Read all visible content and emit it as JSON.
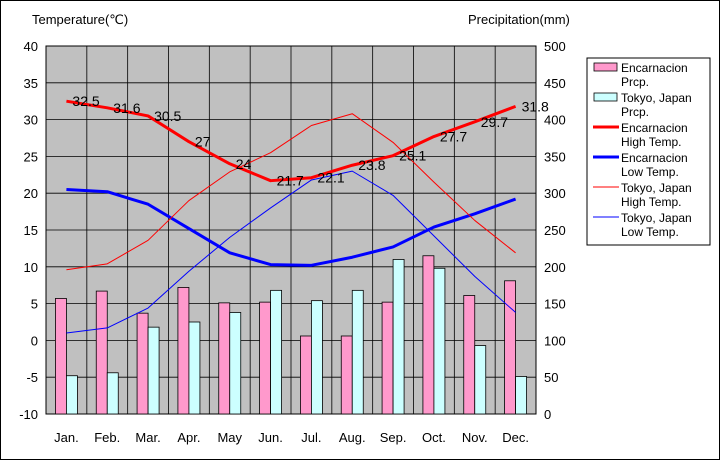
{
  "chart_data": {
    "type": "bar",
    "categories": [
      "Jan.",
      "Feb.",
      "Mar.",
      "Apr.",
      "May",
      "Jun.",
      "Jul.",
      "Aug.",
      "Sep.",
      "Oct.",
      "Nov.",
      "Dec."
    ],
    "left_axis": {
      "title": "Temperature(℃)",
      "ylim": [
        -10,
        40
      ],
      "ticks": [
        -10,
        -5,
        0,
        5,
        10,
        15,
        20,
        25,
        30,
        35,
        40
      ]
    },
    "right_axis": {
      "title": "Precipitation(mm)",
      "ylim": [
        0,
        500
      ],
      "ticks": [
        0,
        50,
        100,
        150,
        200,
        250,
        300,
        350,
        400,
        450,
        500
      ]
    },
    "grid": true,
    "legend": "right",
    "series": [
      {
        "name": "Encarnacion Prcp.",
        "kind": "bar",
        "axis": "right",
        "color": "#ff99cc",
        "values": [
          157,
          167,
          137,
          172,
          151,
          152,
          106,
          106,
          152,
          215,
          161,
          181
        ]
      },
      {
        "name": "Tokyo, Japan Prcp.",
        "kind": "bar",
        "axis": "right",
        "color": "#ccffff",
        "values": [
          52,
          56,
          118,
          125,
          138,
          168,
          154,
          168,
          210,
          198,
          93,
          51
        ]
      },
      {
        "name": "Encarnacion High Temp.",
        "kind": "line",
        "axis": "left",
        "color": "#ff0000",
        "width": "thick",
        "values": [
          32.5,
          31.6,
          30.5,
          27,
          24,
          21.7,
          22.1,
          23.8,
          25.1,
          27.7,
          29.7,
          31.8
        ]
      },
      {
        "name": "Encarnacion Low Temp.",
        "kind": "line",
        "axis": "left",
        "color": "#0000ff",
        "width": "thick",
        "values": [
          20.5,
          20.2,
          18.5,
          15.2,
          11.9,
          10.3,
          10.2,
          11.3,
          12.7,
          15.4,
          17.2,
          19.2
        ]
      },
      {
        "name": "Tokyo, Japan High Temp.",
        "kind": "line",
        "axis": "left",
        "color": "#ff0000",
        "width": "thin",
        "values": [
          9.6,
          10.4,
          13.6,
          19.0,
          22.9,
          25.5,
          29.2,
          30.8,
          26.9,
          21.5,
          16.3,
          11.9
        ]
      },
      {
        "name": "Tokyo, Japan Low Temp.",
        "kind": "line",
        "axis": "left",
        "color": "#0000ff",
        "width": "thin",
        "values": [
          1.0,
          1.7,
          4.4,
          9.4,
          14.0,
          18.0,
          21.8,
          23.0,
          19.7,
          14.2,
          8.7,
          3.8
        ]
      }
    ],
    "data_labels": {
      "series": "Encarnacion High Temp.",
      "texts": [
        "32.5",
        "31.6",
        "30.5",
        "27",
        "24",
        "21.7",
        "22.1",
        "23.8",
        "25.1",
        "27.7",
        "29.7",
        "31.8"
      ]
    },
    "legend_entries": [
      [
        "Encarnacion",
        "Prcp."
      ],
      [
        "Tokyo, Japan",
        "Prcp."
      ],
      [
        "Encarnacion",
        "High Temp."
      ],
      [
        "Encarnacion",
        "Low Temp."
      ],
      [
        "Tokyo, Japan",
        "High Temp."
      ],
      [
        "Tokyo, Japan",
        "Low Temp."
      ]
    ]
  }
}
